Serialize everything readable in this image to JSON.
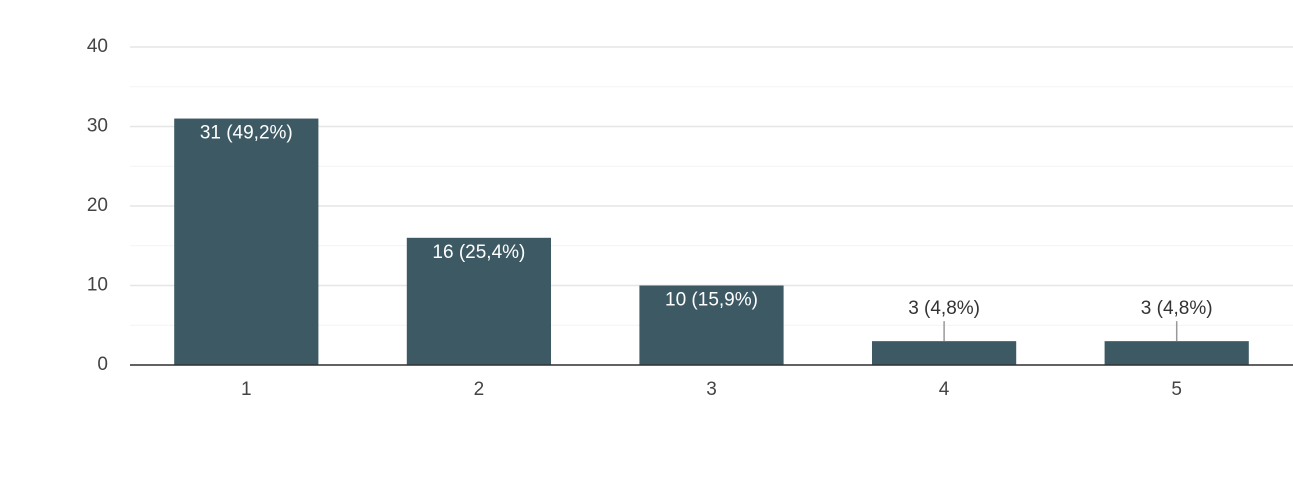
{
  "chart_data": {
    "type": "bar",
    "categories": [
      "1",
      "2",
      "3",
      "4",
      "5"
    ],
    "values": [
      31,
      16,
      10,
      3,
      3
    ],
    "value_labels": [
      "31 (49,2%)",
      "16 (25,4%)",
      "10 (15,9%)",
      "3 (4,8%)",
      "3 (4,8%)"
    ],
    "color": "#3d5a64",
    "ylim": [
      0,
      40
    ],
    "yticks": [
      0,
      10,
      20,
      30,
      40
    ],
    "minor_yticks": [
      5,
      15,
      25,
      35
    ],
    "grid": true
  }
}
